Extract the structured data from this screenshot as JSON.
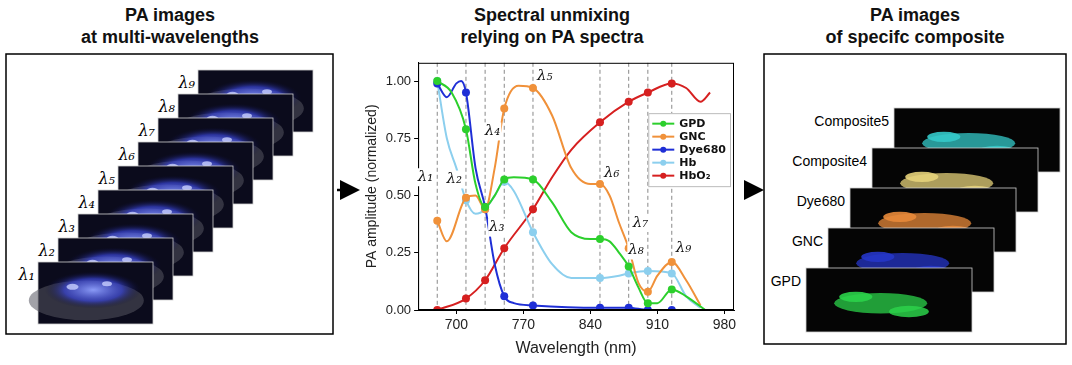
{
  "left": {
    "title": [
      "PA images",
      "at multi-wavelengths"
    ],
    "images": [
      "λ₁",
      "λ₂",
      "λ₃",
      "λ₄",
      "λ₅",
      "λ₆",
      "λ₇",
      "λ₈",
      "λ₉"
    ]
  },
  "chart_data": {
    "type": "line",
    "title": [
      "Spectral unmixing",
      "relying on PA spectra"
    ],
    "x_label": "Wavelength (nm)",
    "y_label": "PA amplitude (normalized)",
    "xlim": [
      660,
      990
    ],
    "xticks": [
      700,
      770,
      840,
      910,
      980
    ],
    "ylim": [
      0,
      1.08
    ],
    "yticks": [
      {
        "value": 0,
        "label": "0.00"
      },
      {
        "value": 0.25,
        "label": "0.25"
      },
      {
        "value": 0.5,
        "label": "0.50"
      },
      {
        "value": 0.75,
        "label": "0.75"
      },
      {
        "value": 1,
        "label": "1.00"
      }
    ],
    "grid": false,
    "legend": "top-right",
    "marker": "circle",
    "line_style": "solid",
    "wavelength_lines": [
      {
        "label": "λ₁",
        "x": 680
      },
      {
        "label": "λ₂",
        "x": 710
      },
      {
        "label": "λ₃",
        "x": 730
      },
      {
        "label": "λ₄",
        "x": 750
      },
      {
        "label": "λ₅",
        "x": 780
      },
      {
        "label": "λ₆",
        "x": 850
      },
      {
        "label": "λ₇",
        "x": 880
      },
      {
        "label": "λ₈",
        "x": 900
      },
      {
        "label": "λ₉",
        "x": 925
      }
    ],
    "series": [
      {
        "name": "GPD",
        "color": "#2ccf2c",
        "x": [
          680,
          695,
          710,
          720,
          730,
          740,
          750,
          760,
          780,
          800,
          820,
          840,
          850,
          860,
          870,
          880,
          890,
          900,
          910,
          925,
          940,
          960
        ],
        "values": [
          1.0,
          0.95,
          0.79,
          0.55,
          0.45,
          0.5,
          0.57,
          0.58,
          0.57,
          0.47,
          0.34,
          0.31,
          0.31,
          0.3,
          0.25,
          0.19,
          0.1,
          0.03,
          0.03,
          0.09,
          0.06,
          0.0
        ]
      },
      {
        "name": "GNC",
        "color": "#f0913a",
        "x": [
          680,
          690,
          710,
          720,
          730,
          740,
          750,
          765,
          780,
          800,
          820,
          840,
          850,
          860,
          870,
          880,
          890,
          900,
          910,
          925,
          940,
          955
        ],
        "values": [
          0.39,
          0.3,
          0.49,
          0.5,
          0.44,
          0.62,
          0.88,
          0.98,
          0.97,
          0.85,
          0.62,
          0.55,
          0.55,
          0.5,
          0.38,
          0.27,
          0.12,
          0.08,
          0.15,
          0.21,
          0.13,
          0.02
        ]
      },
      {
        "name": "Dye680",
        "color": "#1f2fd6",
        "x": [
          680,
          690,
          700,
          705,
          710,
          720,
          730,
          740,
          750,
          760,
          780,
          850,
          880,
          900,
          925
        ],
        "values": [
          0.99,
          0.93,
          0.99,
          1.0,
          0.95,
          0.62,
          0.45,
          0.2,
          0.06,
          0.03,
          0.02,
          0.01,
          0.01,
          0.0,
          0.0
        ]
      },
      {
        "name": "Hb",
        "color": "#8ccfee",
        "x": [
          680,
          690,
          700,
          710,
          720,
          730,
          740,
          750,
          760,
          780,
          800,
          820,
          850,
          870,
          880,
          900,
          925,
          940,
          955
        ],
        "values": [
          1.0,
          0.75,
          0.62,
          0.48,
          0.42,
          0.44,
          0.5,
          0.56,
          0.52,
          0.34,
          0.2,
          0.14,
          0.14,
          0.15,
          0.16,
          0.17,
          0.16,
          0.06,
          0.01
        ]
      },
      {
        "name": "HbO₂",
        "color": "#d62020",
        "x": [
          680,
          710,
          730,
          750,
          780,
          800,
          820,
          850,
          880,
          900,
          925,
          940,
          955,
          965
        ],
        "values": [
          0.0,
          0.05,
          0.13,
          0.27,
          0.44,
          0.58,
          0.7,
          0.82,
          0.91,
          0.95,
          0.99,
          0.97,
          0.91,
          0.95
        ]
      }
    ]
  },
  "right": {
    "title": [
      "PA images",
      "of specifc composite"
    ],
    "images": [
      {
        "label": "GPD",
        "color": "#2bd14a"
      },
      {
        "label": "GNC",
        "color": "#2636c8"
      },
      {
        "label": "Dye680",
        "color": "#e8893a"
      },
      {
        "label": "Composite4",
        "color": "#e6d27a"
      },
      {
        "label": "Composite5",
        "color": "#34c9c9"
      }
    ]
  }
}
